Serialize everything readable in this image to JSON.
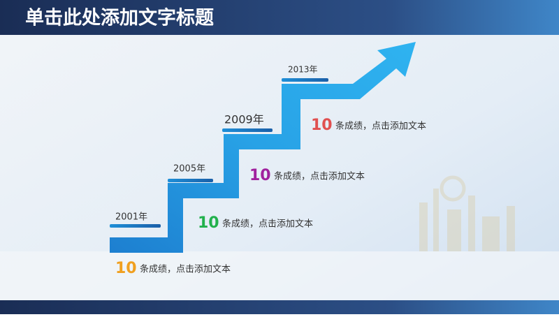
{
  "header": {
    "title": "单击此处添加文字标题"
  },
  "steps": [
    {
      "year": "2001年",
      "number": "10",
      "text": "条成绩，点击添加文本",
      "color": "#f0a020"
    },
    {
      "year": "2005年",
      "number": "10",
      "text": "条成绩，点击添加文本",
      "color": "#22b14c"
    },
    {
      "year": "2009年",
      "number": "10",
      "text": "条成绩，点击添加文本",
      "color": "#a0209e"
    },
    {
      "year": "2013年",
      "number": "10",
      "text": "条成绩，点击添加文本",
      "color": "#e05050"
    }
  ]
}
